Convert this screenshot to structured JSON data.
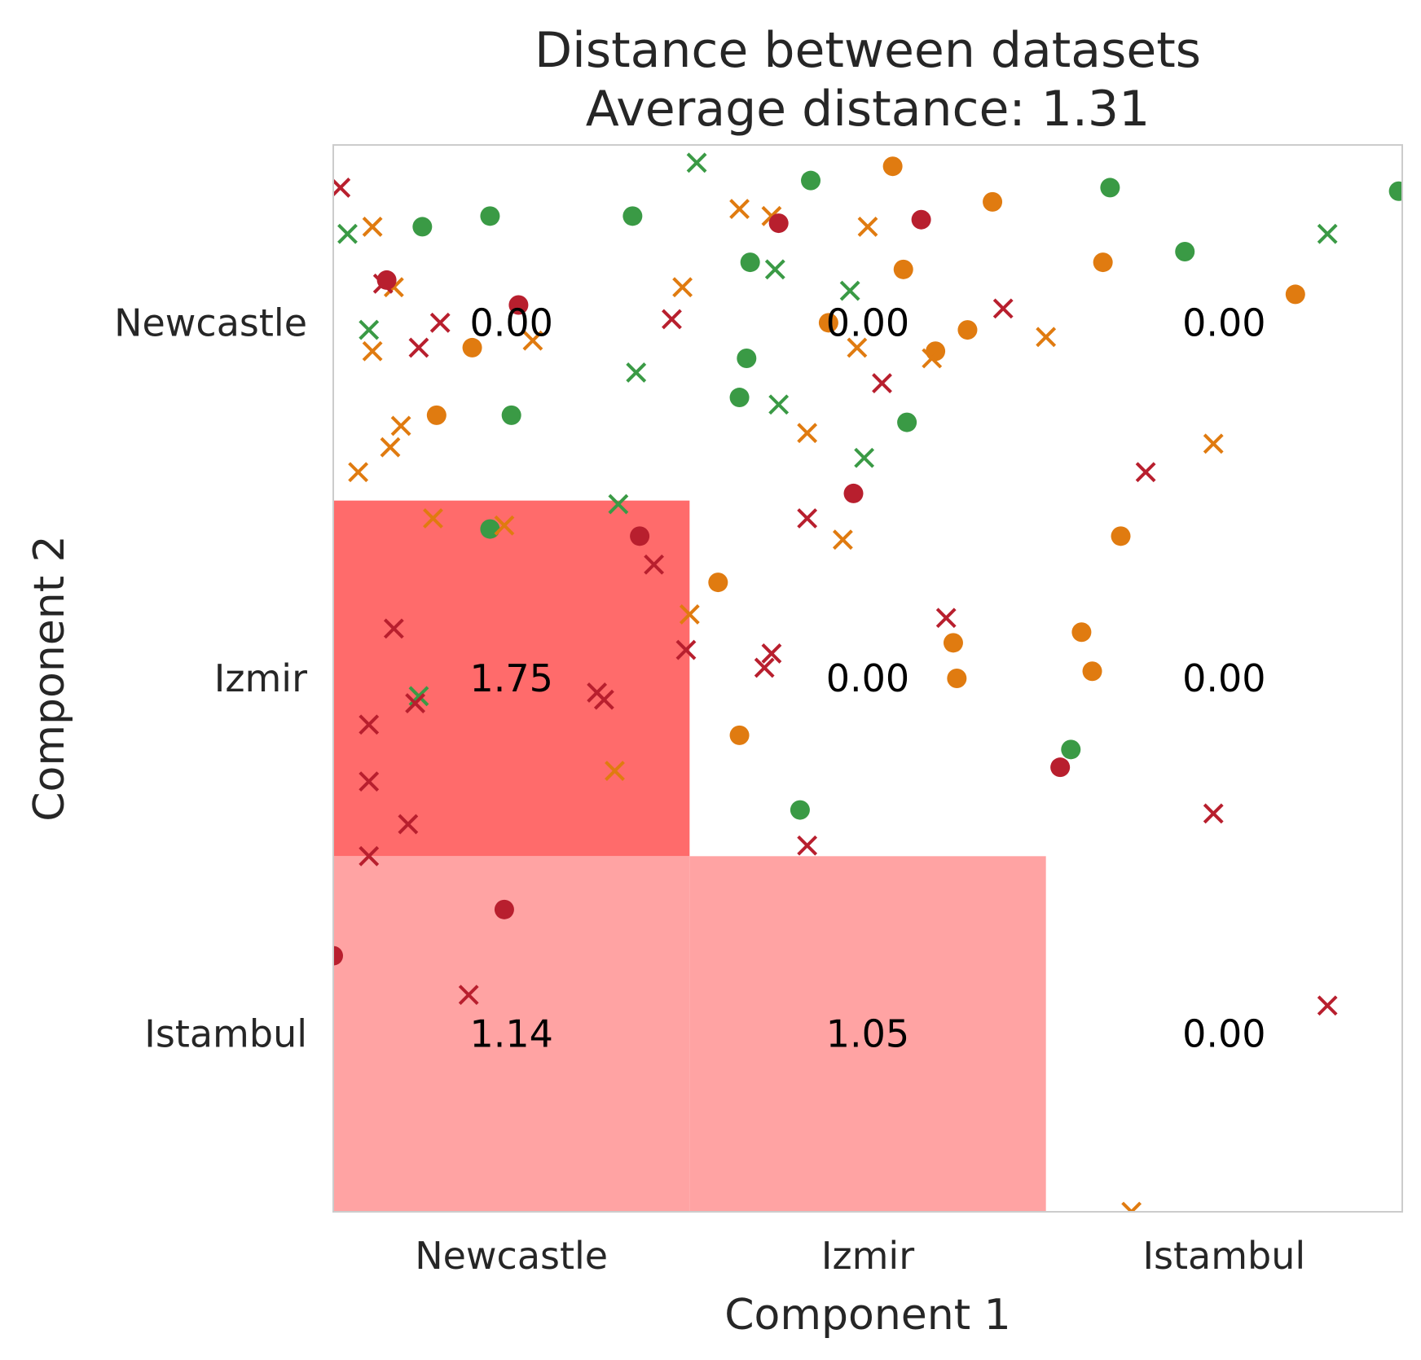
{
  "chart_data": {
    "type": "heatmap",
    "title": "Distance between datasets",
    "subtitle": "Average distance: 1.31",
    "xlabel": "Component 1",
    "ylabel": "Component 2",
    "x_categories": [
      "Newcastle",
      "Izmir",
      "Istambul"
    ],
    "y_categories": [
      "Newcastle",
      "Izmir",
      "Istambul"
    ],
    "matrix": [
      [
        0.0,
        0.0,
        0.0
      ],
      [
        1.75,
        0.0,
        0.0
      ],
      [
        1.14,
        1.05,
        0.0
      ]
    ],
    "matrix_labels": [
      [
        "0.00",
        "0.00",
        "0.00"
      ],
      [
        "1.75",
        "0.00",
        "0.00"
      ],
      [
        "1.14",
        "1.05",
        "0.00"
      ]
    ],
    "colors": {
      "high": "#ff6b6b",
      "mid": "#ffa3a3",
      "green": "#3a9a45",
      "orange": "#e07b10",
      "red": "#b81f2e",
      "frame": "#cccccc"
    },
    "grid": false,
    "xlim": [
      0,
      3
    ],
    "ylim": [
      0,
      3
    ],
    "scatter_series": [
      {
        "color": "green",
        "marker": "circle",
        "points": [
          [
            0.25,
            2.77
          ],
          [
            0.44,
            2.8
          ],
          [
            0.84,
            2.8
          ],
          [
            1.17,
            2.67
          ],
          [
            1.34,
            2.9
          ],
          [
            1.16,
            2.4
          ],
          [
            1.14,
            2.29
          ],
          [
            1.61,
            2.22
          ],
          [
            2.18,
            2.88
          ],
          [
            2.39,
            2.7
          ],
          [
            2.99,
            2.87
          ],
          [
            0.5,
            2.24
          ],
          [
            0.44,
            1.92
          ],
          [
            1.31,
            1.13
          ],
          [
            2.07,
            1.3
          ]
        ]
      },
      {
        "color": "green",
        "marker": "x",
        "points": [
          [
            1.02,
            2.95
          ],
          [
            0.04,
            2.75
          ],
          [
            1.24,
            2.65
          ],
          [
            1.45,
            2.59
          ],
          [
            0.1,
            2.48
          ],
          [
            0.85,
            2.36
          ],
          [
            1.25,
            2.27
          ],
          [
            1.49,
            2.12
          ],
          [
            0.8,
            1.99
          ],
          [
            0.24,
            1.45
          ],
          [
            2.79,
            2.75
          ]
        ]
      },
      {
        "color": "orange",
        "marker": "circle",
        "points": [
          [
            1.57,
            2.94
          ],
          [
            1.85,
            2.84
          ],
          [
            1.39,
            2.5
          ],
          [
            1.6,
            2.65
          ],
          [
            1.78,
            2.48
          ],
          [
            1.69,
            2.42
          ],
          [
            2.16,
            2.67
          ],
          [
            2.7,
            2.58
          ],
          [
            0.39,
            2.43
          ],
          [
            0.29,
            2.24
          ],
          [
            2.21,
            1.9
          ],
          [
            1.08,
            1.77
          ],
          [
            1.74,
            1.6
          ],
          [
            1.75,
            1.5
          ],
          [
            2.1,
            1.63
          ],
          [
            2.13,
            1.52
          ],
          [
            1.14,
            1.34
          ]
        ]
      },
      {
        "color": "orange",
        "marker": "x",
        "points": [
          [
            0.11,
            2.77
          ],
          [
            0.17,
            2.6
          ],
          [
            1.14,
            2.82
          ],
          [
            1.23,
            2.8
          ],
          [
            1.5,
            2.77
          ],
          [
            0.98,
            2.6
          ],
          [
            0.11,
            2.42
          ],
          [
            0.56,
            2.45
          ],
          [
            1.47,
            2.43
          ],
          [
            1.68,
            2.4
          ],
          [
            2.0,
            2.46
          ],
          [
            0.19,
            2.21
          ],
          [
            0.16,
            2.15
          ],
          [
            0.07,
            2.08
          ],
          [
            1.33,
            2.19
          ],
          [
            0.28,
            1.95
          ],
          [
            0.48,
            1.93
          ],
          [
            1.43,
            1.89
          ],
          [
            2.47,
            2.16
          ],
          [
            1.0,
            1.68
          ],
          [
            0.79,
            1.24
          ],
          [
            2.24,
            0.0
          ]
        ]
      },
      {
        "color": "red",
        "marker": "circle",
        "points": [
          [
            0.15,
            2.62
          ],
          [
            0.52,
            2.55
          ],
          [
            1.25,
            2.78
          ],
          [
            1.65,
            2.79
          ],
          [
            1.46,
            2.02
          ],
          [
            0.86,
            1.9
          ],
          [
            2.04,
            1.25
          ],
          [
            0.48,
            0.85
          ],
          [
            0.0,
            0.72
          ]
        ]
      },
      {
        "color": "red",
        "marker": "x",
        "points": [
          [
            0.02,
            2.88
          ],
          [
            0.14,
            2.61
          ],
          [
            0.3,
            2.5
          ],
          [
            0.24,
            2.43
          ],
          [
            0.95,
            2.51
          ],
          [
            1.88,
            2.54
          ],
          [
            1.54,
            2.33
          ],
          [
            2.28,
            2.08
          ],
          [
            1.33,
            1.95
          ],
          [
            0.9,
            1.82
          ],
          [
            0.17,
            1.64
          ],
          [
            1.72,
            1.67
          ],
          [
            0.99,
            1.58
          ],
          [
            1.23,
            1.57
          ],
          [
            1.21,
            1.53
          ],
          [
            0.74,
            1.46
          ],
          [
            0.23,
            1.43
          ],
          [
            0.76,
            1.44
          ],
          [
            0.1,
            1.37
          ],
          [
            0.1,
            1.21
          ],
          [
            0.21,
            1.09
          ],
          [
            0.1,
            1.0
          ],
          [
            1.33,
            1.03
          ],
          [
            2.47,
            1.12
          ],
          [
            0.38,
            0.61
          ],
          [
            2.79,
            0.58
          ]
        ]
      }
    ]
  }
}
